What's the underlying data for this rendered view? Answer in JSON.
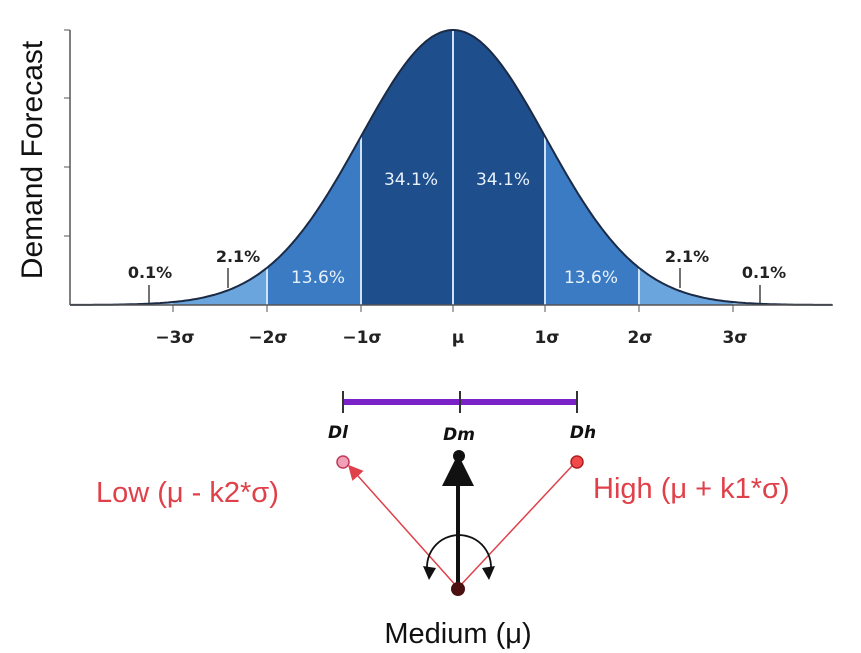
{
  "diagram": {
    "y_axis_label": "Demand Forecast",
    "x_ticks": [
      "−3σ",
      "−2σ",
      "−1σ",
      "μ",
      "1σ",
      "2σ",
      "3σ"
    ],
    "region_labels": {
      "inner_left": "34.1%",
      "inner_right": "34.1%",
      "mid_left": "13.6%",
      "mid_right": "13.6%",
      "outer_left": "2.1%",
      "outer_right": "2.1%",
      "tail_left": "0.1%",
      "tail_right": "0.1%"
    },
    "range_labels": {
      "low": "Dl",
      "mid": "Dm",
      "high": "Dh"
    },
    "outcome_labels": {
      "low": "Low (μ - k2*σ)",
      "high": "High (μ + k1*σ)",
      "medium": "Medium (μ)"
    },
    "colors": {
      "center_band": "#1e4f8c",
      "mid_band": "#3a7bc4",
      "outer_band": "#6aa5dd",
      "tail_band": "#a8cdf0",
      "range_bar": "#7a22c8",
      "low_high_arrow": "#e0404a"
    }
  }
}
